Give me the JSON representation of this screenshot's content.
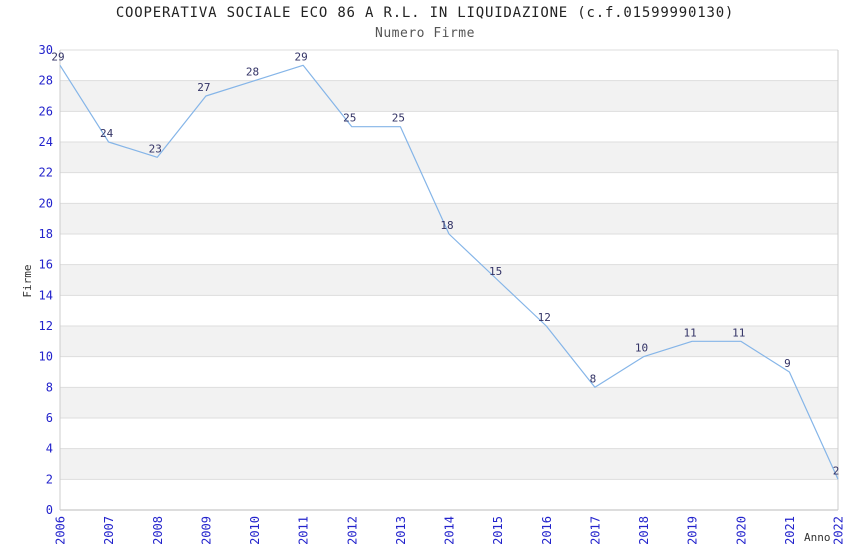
{
  "header": {
    "title": "COOPERATIVA SOCIALE ECO 86 A R.L. IN LIQUIDAZIONE (c.f.01599990130)",
    "subtitle": "Numero Firme"
  },
  "chart_data": {
    "type": "line",
    "title": "COOPERATIVA SOCIALE ECO 86 A R.L. IN LIQUIDAZIONE (c.f.01599990130)",
    "subtitle": "Numero Firme",
    "xlabel": "Anno",
    "ylabel": "Firme",
    "x": [
      2006,
      2007,
      2008,
      2009,
      2010,
      2011,
      2012,
      2013,
      2014,
      2015,
      2016,
      2017,
      2018,
      2019,
      2020,
      2021,
      2022
    ],
    "values": [
      29,
      24,
      23,
      27,
      28,
      29,
      25,
      25,
      18,
      15,
      12,
      8,
      10,
      11,
      11,
      9,
      2
    ],
    "ylim": [
      0,
      30
    ],
    "ytick_step": 2,
    "grid": true,
    "legend": "none",
    "colors": {
      "line": "#85b5e8",
      "point_label": "#333366",
      "tick_label": "#2323cc",
      "band": "#f2f2f2",
      "grid": "#dddddd",
      "axis": "#bbbbbb",
      "border": "#cccccc",
      "title": "#222222",
      "subtitle": "#555555"
    }
  }
}
